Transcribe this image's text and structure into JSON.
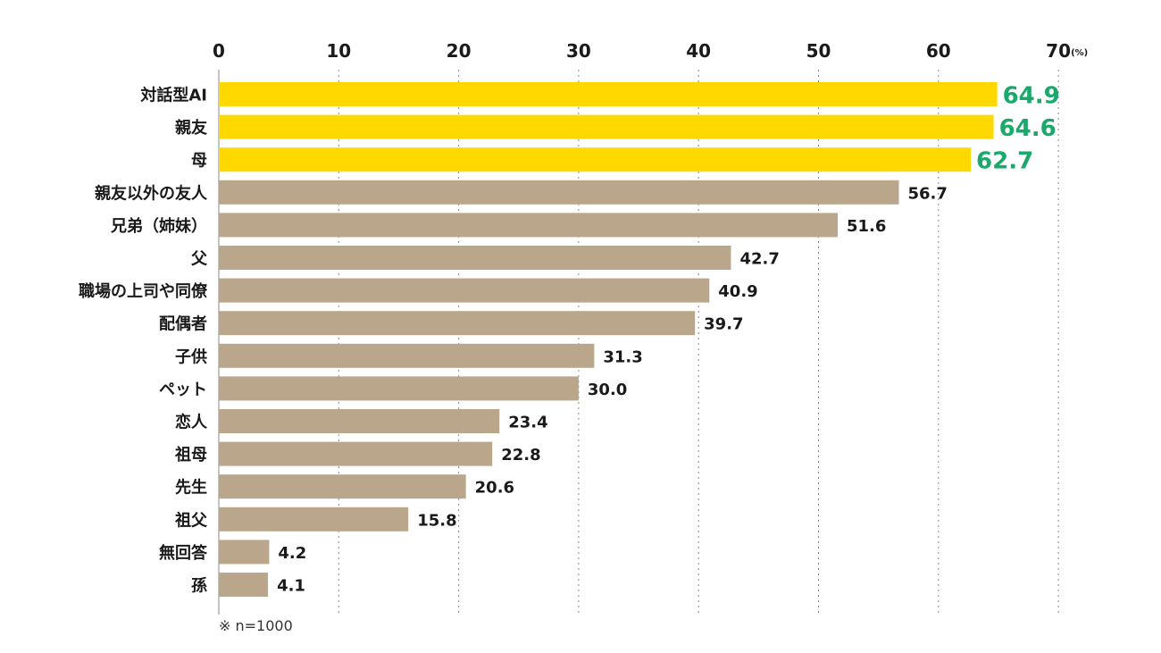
{
  "chart_data": {
    "type": "bar",
    "orientation": "horizontal",
    "unit": "(%)",
    "xlim": [
      0,
      70
    ],
    "ticks": [
      0,
      10,
      20,
      30,
      40,
      50,
      60,
      70
    ],
    "tick_labels": [
      "0",
      "10",
      "20",
      "30",
      "40",
      "50",
      "60",
      "70"
    ],
    "grid": true,
    "categories": [
      "対話型AI",
      "親友",
      "母",
      "親友以外の友人",
      "兄弟（姉妹）",
      "父",
      "職場の上司や同僚",
      "配偶者",
      "子供",
      "ペット",
      "恋人",
      "祖母",
      "先生",
      "祖父",
      "無回答",
      "孫"
    ],
    "values": [
      64.9,
      64.6,
      62.7,
      56.7,
      51.6,
      42.7,
      40.9,
      39.7,
      31.3,
      30.0,
      23.4,
      22.8,
      20.6,
      15.8,
      4.2,
      4.1
    ],
    "value_labels": [
      "64.9",
      "64.6",
      "62.7",
      "56.7",
      "51.6",
      "42.7",
      "40.9",
      "39.7",
      "31.3",
      "30.0",
      "23.4",
      "22.8",
      "20.6",
      "15.8",
      "4.2",
      "4.1"
    ],
    "highlighted": [
      true,
      true,
      true,
      false,
      false,
      false,
      false,
      false,
      false,
      false,
      false,
      false,
      false,
      false,
      false,
      false
    ],
    "colors": {
      "highlight_bar": "#FFD800",
      "normal_bar": "#B9A68B",
      "highlight_value": "#1AA86B",
      "normal_value": "#1A1A1A"
    },
    "note": "※ n=1000"
  }
}
